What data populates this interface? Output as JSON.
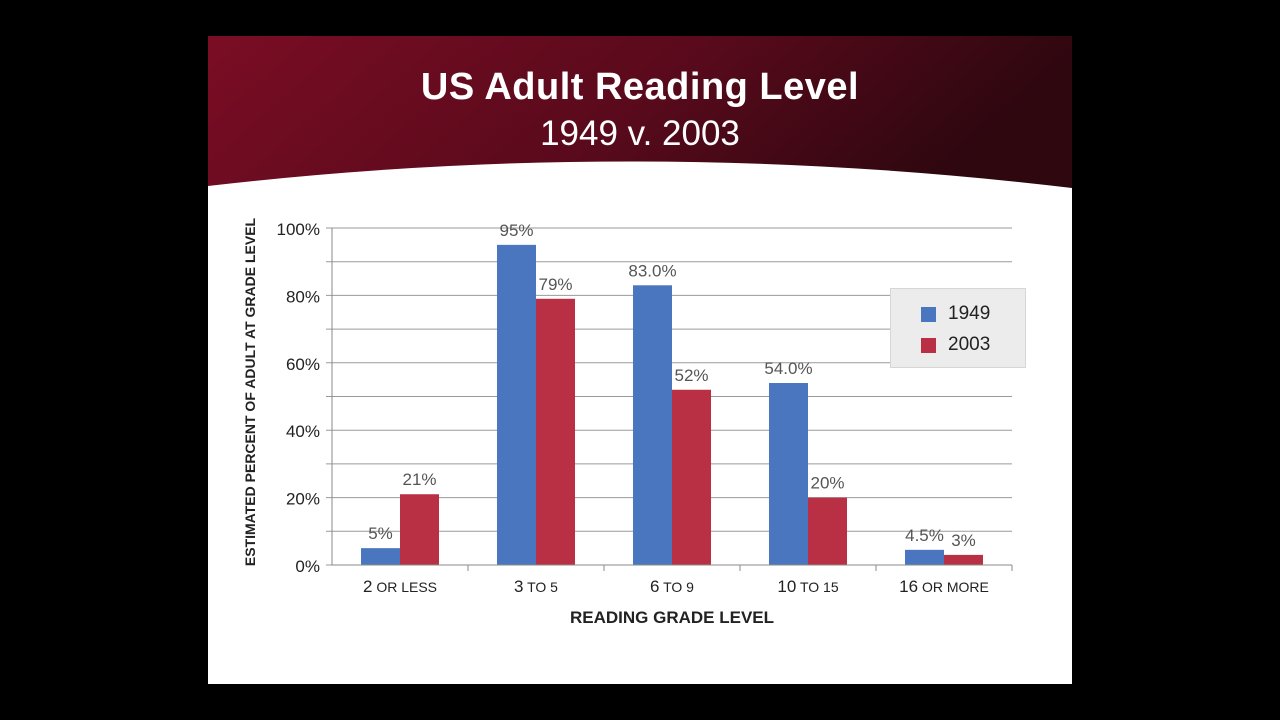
{
  "chart_data": {
    "type": "bar",
    "title": "US Adult Reading Level",
    "subtitle": "1949 v. 2003",
    "xlabel": "READING GRADE LEVEL",
    "ylabel": "ESTIMATED PERCENT OF ADULT AT GRADE LEVEL",
    "categories": [
      {
        "lead": "2",
        "rest": " OR LESS"
      },
      {
        "lead": "3",
        "rest": " TO 5"
      },
      {
        "lead": "6",
        "rest": " TO 9"
      },
      {
        "lead": "10",
        "rest": " TO 15"
      },
      {
        "lead": "16",
        "rest": " OR MORE"
      }
    ],
    "series": [
      {
        "name": "1949",
        "color": "#4a76bf",
        "values": [
          5,
          95,
          83,
          54,
          4.5
        ],
        "labels": [
          "5%",
          "95%",
          "83.0%",
          "54.0%",
          "4.5%"
        ]
      },
      {
        "name": "2003",
        "color": "#b93044",
        "values": [
          21,
          79,
          52,
          20,
          3
        ],
        "labels": [
          "21%",
          "79%",
          "52%",
          "20%",
          "3%"
        ]
      }
    ],
    "ylim": [
      0,
      100
    ],
    "yticks": [
      0,
      20,
      40,
      60,
      80,
      100
    ],
    "ytick_labels": [
      "0%",
      "20%",
      "40%",
      "60%",
      "80%",
      "100%"
    ],
    "grid": true,
    "legend_position": "right"
  }
}
